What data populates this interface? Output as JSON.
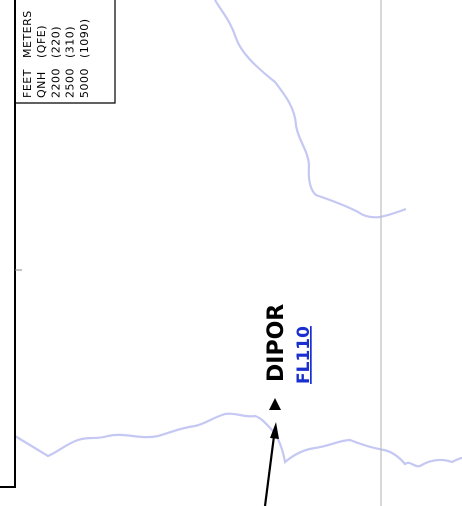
{
  "table": {
    "rows": [
      [
        "FEET",
        "METERS"
      ],
      [
        "QNH",
        "(QFE)"
      ],
      [
        "2200",
        "(220)"
      ],
      [
        "2500",
        "(310)"
      ],
      [
        "5000",
        "(1090)"
      ]
    ]
  },
  "labels": {
    "fix": "DIPOR",
    "level": "FL110"
  }
}
